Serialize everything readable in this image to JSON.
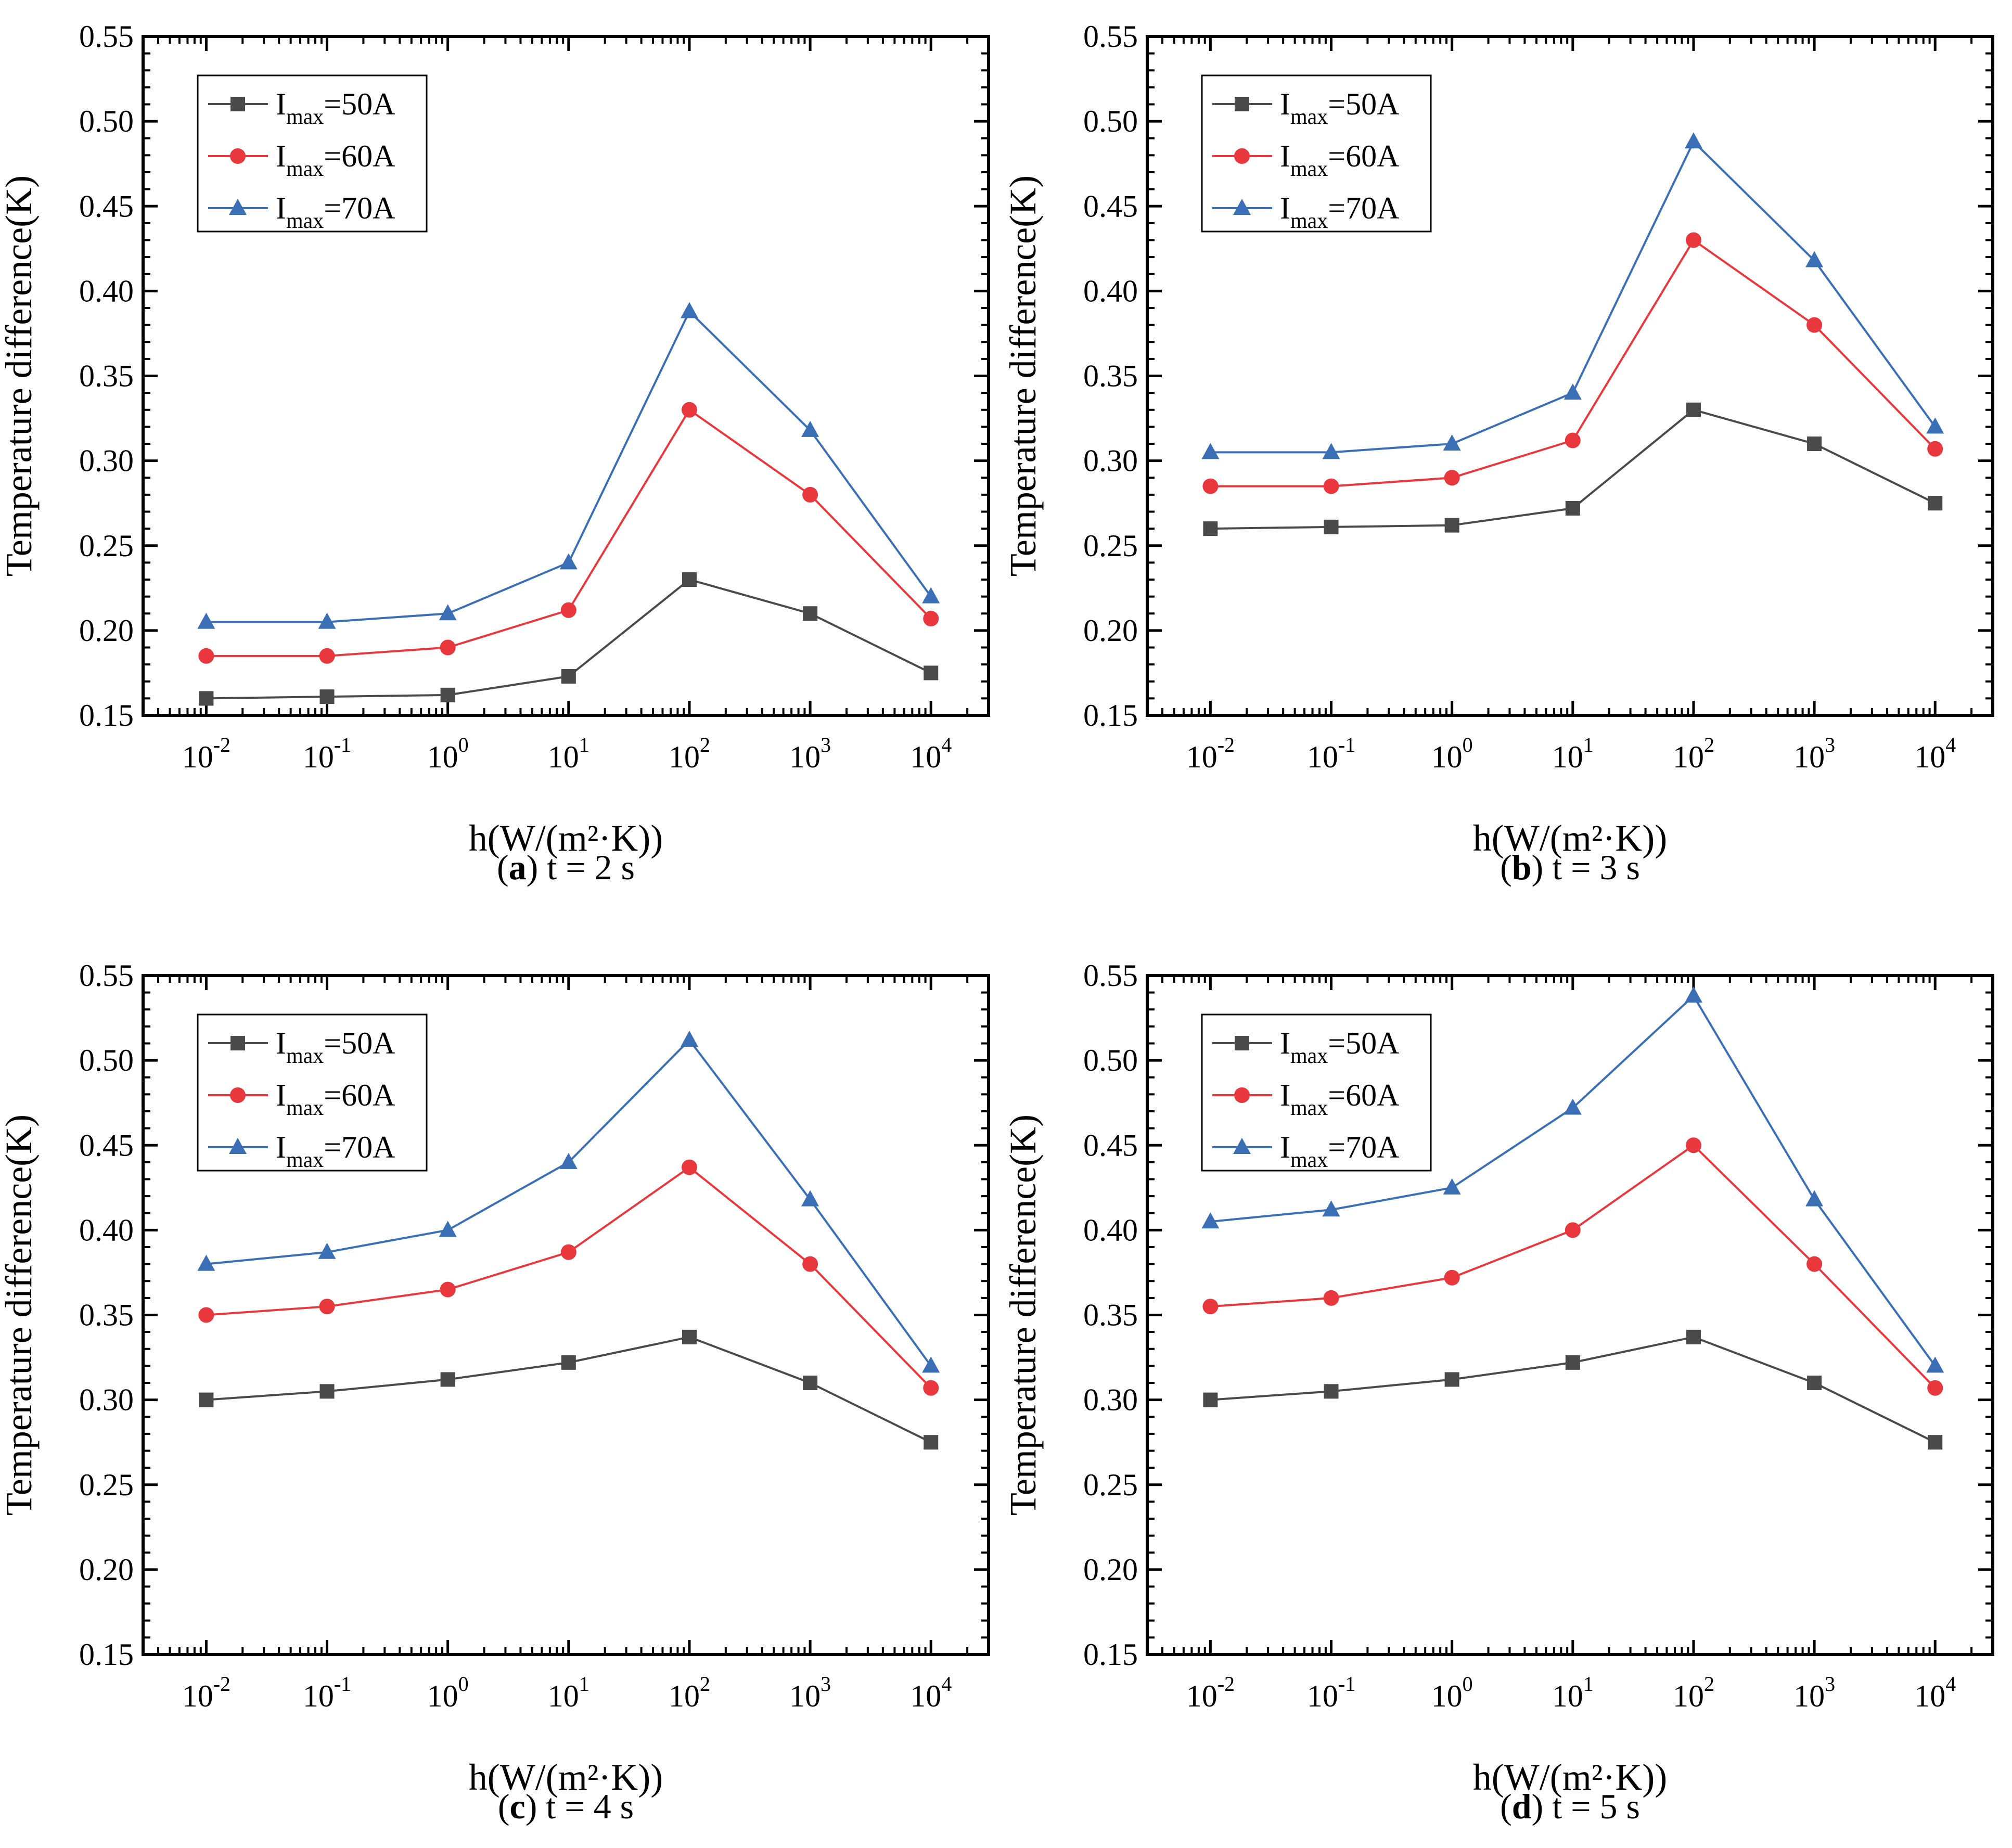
{
  "colors": {
    "series_50": "#4a4a4a",
    "series_60": "#e8383d",
    "series_70": "#3a6fb5"
  },
  "chart_data": [
    {
      "type": "line",
      "panel_label": "a",
      "caption": "t = 2 s",
      "xlabel": "h(W/(m²·K))",
      "ylabel": "Temperature difference(K)",
      "x": [
        0.01,
        0.1,
        1,
        10,
        100,
        1000,
        10000
      ],
      "x_tick_bases": [
        "10",
        "10",
        "10",
        "10",
        "10",
        "10",
        "10"
      ],
      "x_tick_exponents": [
        "-2",
        "-1",
        "0",
        "1",
        "2",
        "3",
        "4"
      ],
      "x_scale": "log",
      "ylim": [
        0.15,
        0.55
      ],
      "y_ticks": [
        "0.15",
        "0.20",
        "0.25",
        "0.30",
        "0.35",
        "0.40",
        "0.45",
        "0.50",
        "0.55"
      ],
      "grid": false,
      "legend_position": "top-left",
      "series": [
        {
          "name": "Imax=50A",
          "legend_base": "I",
          "legend_sub": "max",
          "legend_rest": "=50A",
          "marker": "square",
          "values": [
            0.16,
            0.161,
            0.162,
            0.173,
            0.23,
            0.21,
            0.175
          ]
        },
        {
          "name": "Imax=60A",
          "legend_base": "I",
          "legend_sub": "max",
          "legend_rest": "=60A",
          "marker": "circle",
          "values": [
            0.185,
            0.185,
            0.19,
            0.212,
            0.33,
            0.28,
            0.207
          ]
        },
        {
          "name": "Imax=70A",
          "legend_base": "I",
          "legend_sub": "max",
          "legend_rest": "=70A",
          "marker": "triangle",
          "values": [
            0.205,
            0.205,
            0.21,
            0.24,
            0.388,
            0.318,
            0.22
          ]
        }
      ]
    },
    {
      "type": "line",
      "panel_label": "b",
      "caption": "t = 3 s",
      "xlabel": "h(W/(m²·K))",
      "ylabel": "Temperature difference(K)",
      "x": [
        0.01,
        0.1,
        1,
        10,
        100,
        1000,
        10000
      ],
      "x_tick_bases": [
        "10",
        "10",
        "10",
        "10",
        "10",
        "10",
        "10"
      ],
      "x_tick_exponents": [
        "-2",
        "-1",
        "0",
        "1",
        "2",
        "3",
        "4"
      ],
      "x_scale": "log",
      "ylim": [
        0.15,
        0.55
      ],
      "y_ticks": [
        "0.15",
        "0.20",
        "0.25",
        "0.30",
        "0.35",
        "0.40",
        "0.45",
        "0.50",
        "0.55"
      ],
      "grid": false,
      "legend_position": "top-left",
      "series": [
        {
          "name": "Imax=50A",
          "legend_base": "I",
          "legend_sub": "max",
          "legend_rest": "=50A",
          "marker": "square",
          "values": [
            0.26,
            0.261,
            0.262,
            0.272,
            0.33,
            0.31,
            0.275
          ]
        },
        {
          "name": "Imax=60A",
          "legend_base": "I",
          "legend_sub": "max",
          "legend_rest": "=60A",
          "marker": "circle",
          "values": [
            0.285,
            0.285,
            0.29,
            0.312,
            0.43,
            0.38,
            0.307
          ]
        },
        {
          "name": "Imax=70A",
          "legend_base": "I",
          "legend_sub": "max",
          "legend_rest": "=70A",
          "marker": "triangle",
          "values": [
            0.305,
            0.305,
            0.31,
            0.34,
            0.488,
            0.418,
            0.32
          ]
        }
      ]
    },
    {
      "type": "line",
      "panel_label": "c",
      "caption": "t = 4 s",
      "xlabel": "h(W/(m²·K))",
      "ylabel": "Temperature difference(K)",
      "x": [
        0.01,
        0.1,
        1,
        10,
        100,
        1000,
        10000
      ],
      "x_tick_bases": [
        "10",
        "10",
        "10",
        "10",
        "10",
        "10",
        "10"
      ],
      "x_tick_exponents": [
        "-2",
        "-1",
        "0",
        "1",
        "2",
        "3",
        "4"
      ],
      "x_scale": "log",
      "ylim": [
        0.15,
        0.55
      ],
      "y_ticks": [
        "0.15",
        "0.20",
        "0.25",
        "0.30",
        "0.35",
        "0.40",
        "0.45",
        "0.50",
        "0.55"
      ],
      "grid": false,
      "legend_position": "top-left",
      "series": [
        {
          "name": "Imax=50A",
          "legend_base": "I",
          "legend_sub": "max",
          "legend_rest": "=50A",
          "marker": "square",
          "values": [
            0.3,
            0.305,
            0.312,
            0.322,
            0.337,
            0.31,
            0.275
          ]
        },
        {
          "name": "Imax=60A",
          "legend_base": "I",
          "legend_sub": "max",
          "legend_rest": "=60A",
          "marker": "circle",
          "values": [
            0.35,
            0.355,
            0.365,
            0.387,
            0.437,
            0.38,
            0.307
          ]
        },
        {
          "name": "Imax=70A",
          "legend_base": "I",
          "legend_sub": "max",
          "legend_rest": "=70A",
          "marker": "triangle",
          "values": [
            0.38,
            0.387,
            0.4,
            0.44,
            0.512,
            0.418,
            0.32
          ]
        }
      ]
    },
    {
      "type": "line",
      "panel_label": "d",
      "caption": "t = 5 s",
      "xlabel": "h(W/(m²·K))",
      "ylabel": "Temperature difference(K)",
      "x": [
        0.01,
        0.1,
        1,
        10,
        100,
        1000,
        10000
      ],
      "x_tick_bases": [
        "10",
        "10",
        "10",
        "10",
        "10",
        "10",
        "10"
      ],
      "x_tick_exponents": [
        "-2",
        "-1",
        "0",
        "1",
        "2",
        "3",
        "4"
      ],
      "x_scale": "log",
      "ylim": [
        0.15,
        0.55
      ],
      "y_ticks": [
        "0.15",
        "0.20",
        "0.25",
        "0.30",
        "0.35",
        "0.40",
        "0.45",
        "0.50",
        "0.55"
      ],
      "grid": false,
      "legend_position": "top-left",
      "series": [
        {
          "name": "Imax=50A",
          "legend_base": "I",
          "legend_sub": "max",
          "legend_rest": "=50A",
          "marker": "square",
          "values": [
            0.3,
            0.305,
            0.312,
            0.322,
            0.337,
            0.31,
            0.275
          ]
        },
        {
          "name": "Imax=60A",
          "legend_base": "I",
          "legend_sub": "max",
          "legend_rest": "=60A",
          "marker": "circle",
          "values": [
            0.355,
            0.36,
            0.372,
            0.4,
            0.45,
            0.38,
            0.307
          ]
        },
        {
          "name": "Imax=70A",
          "legend_base": "I",
          "legend_sub": "max",
          "legend_rest": "=70A",
          "marker": "triangle",
          "values": [
            0.405,
            0.412,
            0.425,
            0.472,
            0.538,
            0.418,
            0.32
          ]
        }
      ]
    }
  ]
}
